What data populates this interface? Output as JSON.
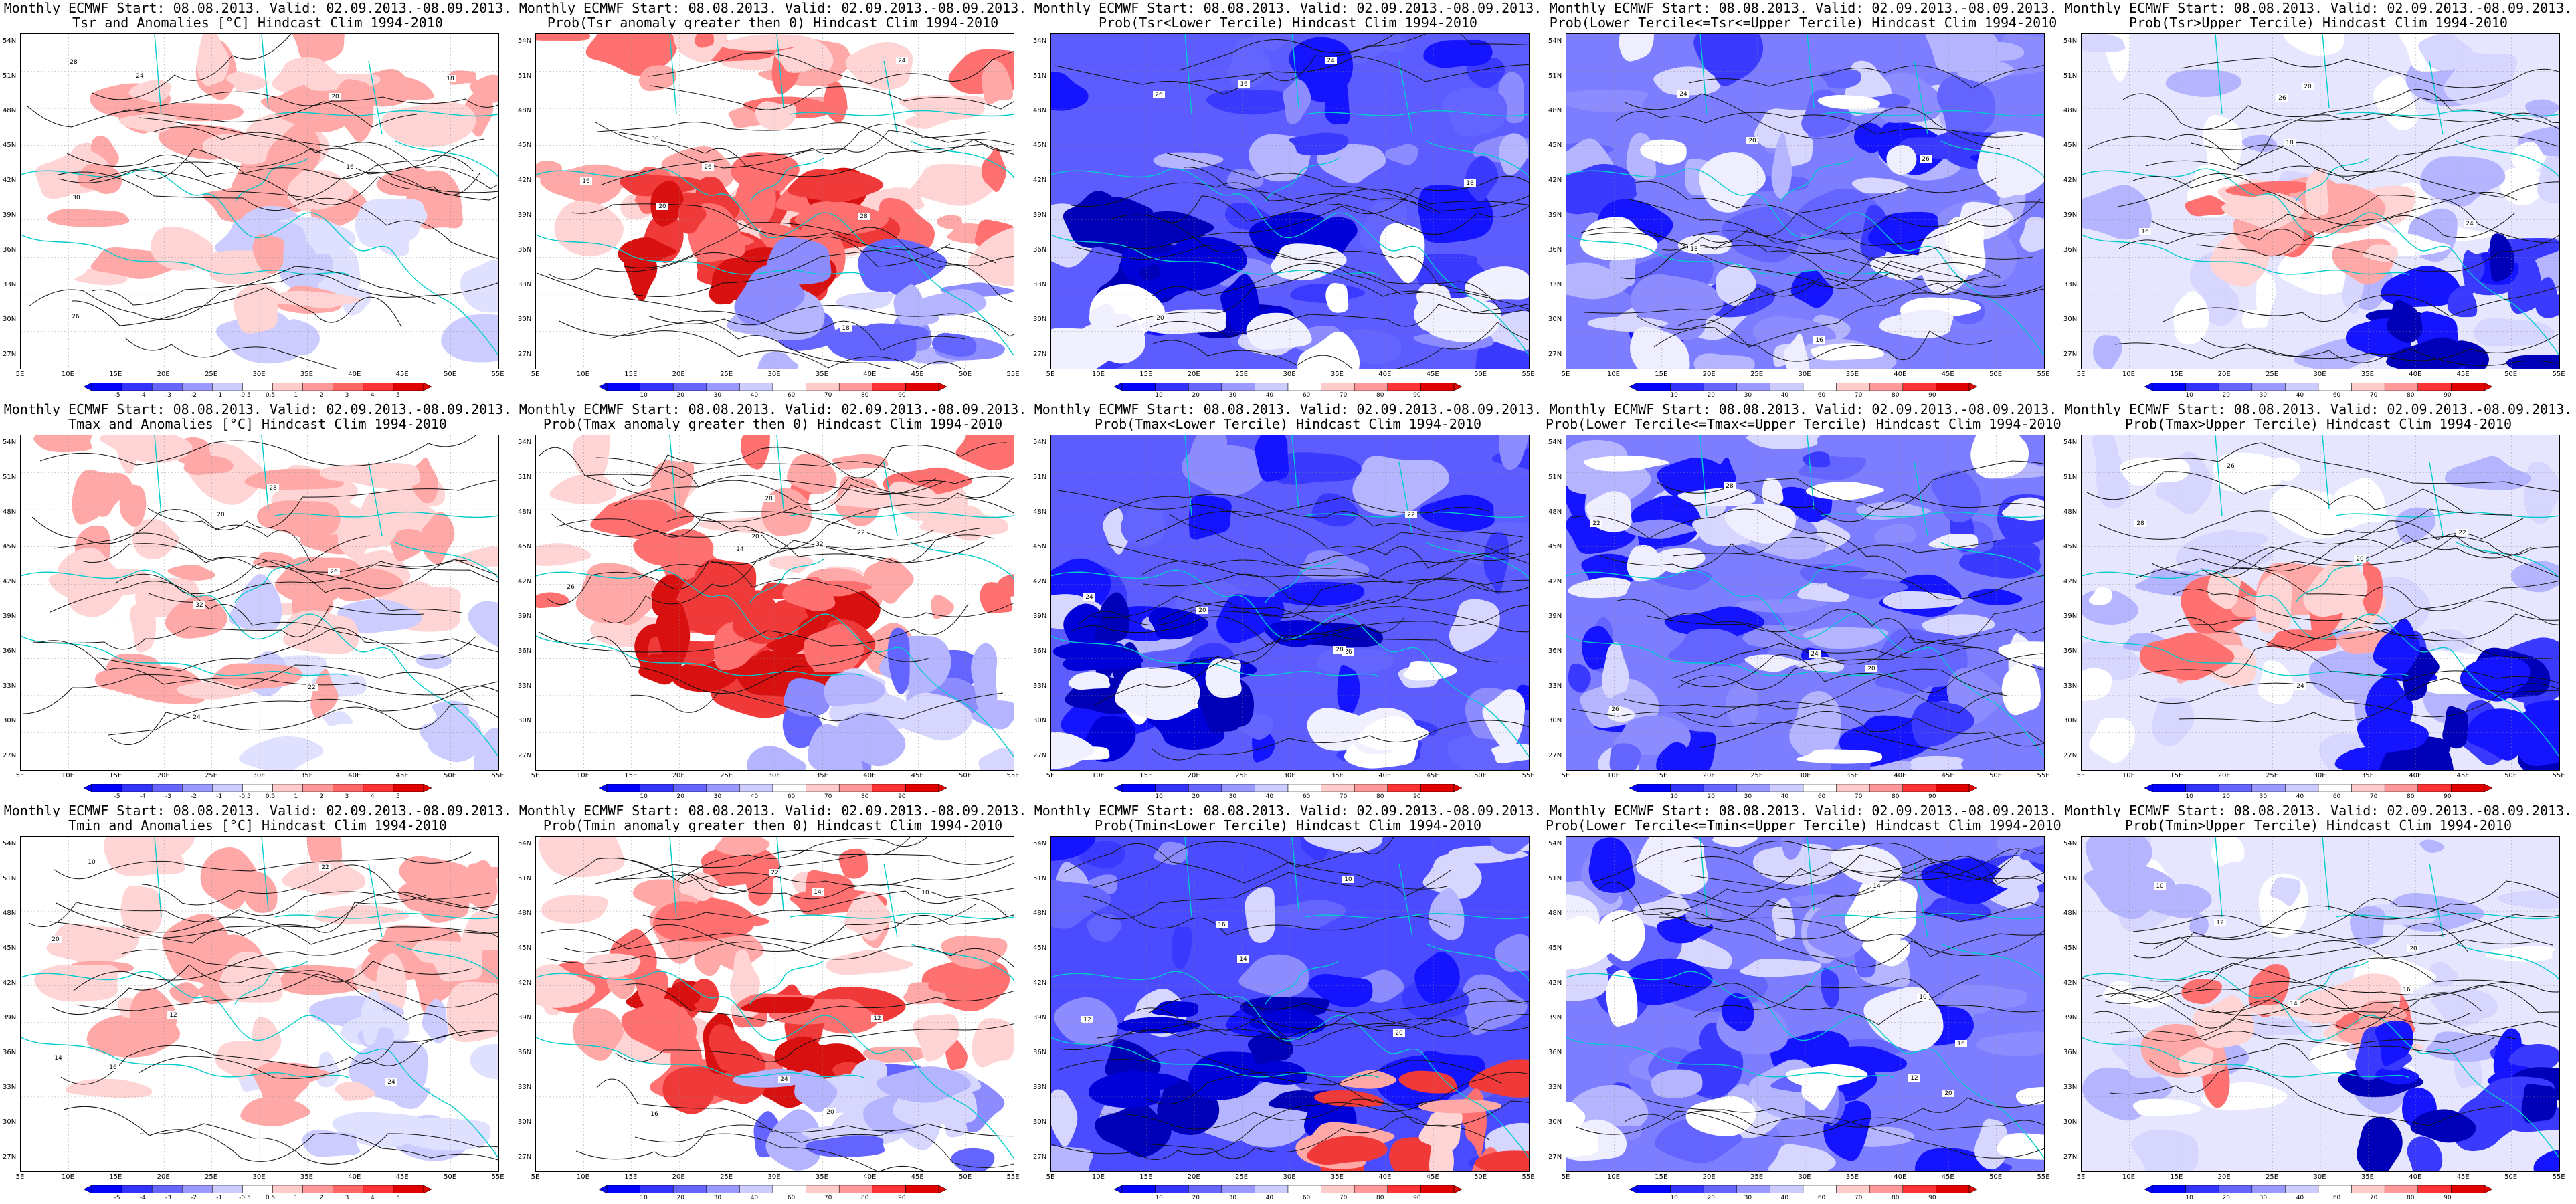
{
  "colors": {
    "blue_dark": "#0000ff",
    "red_dark": "#e00000",
    "coast": "#00cccc",
    "contour": "#000000",
    "anom_palette": [
      "#0000ff",
      "#3333ff",
      "#6666ff",
      "#9999ff",
      "#ccccff",
      "#ffffff",
      "#ffcccc",
      "#ff9999",
      "#ff6666",
      "#ff3333",
      "#e00000"
    ],
    "prob_palette": [
      "#0000ff",
      "#3333ff",
      "#6666ff",
      "#9999ff",
      "#ccccff",
      "#ffffff",
      "#ffcccc",
      "#ff9999",
      "#ff3333",
      "#e00000"
    ]
  },
  "axes": {
    "lat_labels": [
      "54N",
      "51N",
      "48N",
      "45N",
      "42N",
      "39N",
      "36N",
      "33N",
      "30N",
      "27N"
    ],
    "lon_labels": [
      "5E",
      "10E",
      "15E",
      "20E",
      "25E",
      "30E",
      "35E",
      "40E",
      "45E",
      "50E",
      "55E"
    ]
  },
  "colorbars": {
    "anom": [
      "-5",
      "-4",
      "-3",
      "-2",
      "-1",
      "-0.5",
      "0.5",
      "1",
      "2",
      "3",
      "4",
      "5"
    ],
    "prob": [
      "10",
      "20",
      "30",
      "40",
      "60",
      "70",
      "80",
      "90"
    ]
  },
  "rows": [
    {
      "panels": [
        {
          "title1": "Monthly ECMWF Start: 08.08.2013. Valid: 02.09.2013.-08.09.2013.",
          "title2": "Tsr and Anomalies [°C] Hindcast Clim 1994-2010",
          "kind": "anom",
          "icon": "anomaly-map-icon",
          "contours": [
            "16",
            "18",
            "20",
            "24",
            "26",
            "28",
            "30"
          ]
        },
        {
          "title1": "Monthly ECMWF Start: 08.08.2013. Valid: 02.09.2013.-08.09.2013.",
          "title2": "Prob(Tsr anomaly greater then 0) Hindcast Clim 1994-2010",
          "kind": "prob_warm",
          "icon": "probability-map-icon",
          "contours": [
            "16",
            "18",
            "20",
            "24",
            "26",
            "28",
            "30"
          ]
        },
        {
          "title1": "Monthly ECMWF Start: 08.08.2013. Valid: 02.09.2013.-08.09.2013.",
          "title2": "Prob(Tsr<Lower Tercile) Hindcast Clim 1994-2010",
          "kind": "prob_cold",
          "icon": "probability-map-icon",
          "contours": [
            "16",
            "18",
            "20",
            "24",
            "26"
          ]
        },
        {
          "title1": "Monthly ECMWF Start: 08.08.2013. Valid: 02.09.2013.-08.09.2013.",
          "title2": "Prob(Lower Tercile<=Tsr<=Upper Tercile) Hindcast Clim 1994-2010",
          "kind": "prob_mid",
          "icon": "probability-map-icon",
          "contours": [
            "16",
            "18",
            "20",
            "24",
            "26"
          ]
        },
        {
          "title1": "Monthly ECMWF Start: 08.08.2013. Valid: 02.09.2013.-08.09.2013.",
          "title2": "Prob(Tsr>Upper Tercile) Hindcast Clim 1994-2010",
          "kind": "prob_upper",
          "icon": "probability-map-icon",
          "contours": [
            "16",
            "18",
            "20",
            "24",
            "26"
          ]
        }
      ]
    },
    {
      "panels": [
        {
          "title1": "Monthly ECMWF Start: 08.08.2013. Valid: 02.09.2013.-08.09.2013.",
          "title2": "Tmax and Anomalies [°C] Hindcast Clim 1994-2010",
          "kind": "anom",
          "icon": "anomaly-map-icon",
          "contours": [
            "20",
            "22",
            "24",
            "26",
            "28",
            "32"
          ]
        },
        {
          "title1": "Monthly ECMWF Start: 08.08.2013. Valid: 02.09.2013.-08.09.2013.",
          "title2": "Prob(Tmax anomaly greater then 0) Hindcast Clim 1994-2010",
          "kind": "prob_warm",
          "icon": "probability-map-icon",
          "contours": [
            "20",
            "22",
            "24",
            "26",
            "28",
            "32"
          ]
        },
        {
          "title1": "Monthly ECMWF Start: 08.08.2013. Valid: 02.09.2013.-08.09.2013.",
          "title2": "Prob(Tmax<Lower Tercile) Hindcast Clim 1994-2010",
          "kind": "prob_cold",
          "icon": "probability-map-icon",
          "contours": [
            "20",
            "22",
            "24",
            "26",
            "28"
          ]
        },
        {
          "title1": "Monthly ECMWF Start: 08.08.2013. Valid: 02.09.2013.-08.09.2013.",
          "title2": "Prob(Lower Tercile<=Tmax<=Upper Tercile) Hindcast Clim 1994-2010",
          "kind": "prob_mid",
          "icon": "probability-map-icon",
          "contours": [
            "20",
            "22",
            "24",
            "26",
            "28"
          ]
        },
        {
          "title1": "Monthly ECMWF Start: 08.08.2013. Valid: 02.09.2013.-08.09.2013.",
          "title2": "Prob(Tmax>Upper Tercile) Hindcast Clim 1994-2010",
          "kind": "prob_upper",
          "icon": "probability-map-icon",
          "contours": [
            "20",
            "22",
            "24",
            "26",
            "28"
          ]
        }
      ]
    },
    {
      "panels": [
        {
          "title1": "Monthly ECMWF Start: 08.08.2013. Valid: 02.09.2013.-08.09.2013.",
          "title2": "Tmin and Anomalies [°C] Hindcast Clim 1994-2010",
          "kind": "anom",
          "icon": "anomaly-map-icon",
          "contours": [
            "10",
            "12",
            "14",
            "16",
            "20",
            "22",
            "24"
          ]
        },
        {
          "title1": "Monthly ECMWF Start: 08.08.2013. Valid: 02.09.2013.-08.09.2013.",
          "title2": "Prob(Tmin anomaly greater then 0) Hindcast Clim 1994-2010",
          "kind": "prob_warm",
          "icon": "probability-map-icon",
          "contours": [
            "10",
            "12",
            "14",
            "16",
            "20",
            "22",
            "24"
          ]
        },
        {
          "title1": "Monthly ECMWF Start: 08.08.2013. Valid: 02.09.2013.-08.09.2013.",
          "title2": "Prob(Tmin<Lower Tercile) Hindcast Clim 1994-2010",
          "kind": "prob_cold_mixed",
          "icon": "probability-map-icon",
          "contours": [
            "10",
            "12",
            "14",
            "16",
            "20"
          ]
        },
        {
          "title1": "Monthly ECMWF Start: 08.08.2013. Valid: 02.09.2013.-08.09.2013.",
          "title2": "Prob(Lower Tercile<=Tmin<=Upper Tercile) Hindcast Clim 1994-2010",
          "kind": "prob_mid",
          "icon": "probability-map-icon",
          "contours": [
            "10",
            "12",
            "14",
            "16",
            "20"
          ]
        },
        {
          "title1": "Monthly ECMWF Start: 08.08.2013. Valid: 02.09.2013.-08.09.2013.",
          "title2": "Prob(Tmin>Upper Tercile) Hindcast Clim 1994-2010",
          "kind": "prob_upper",
          "icon": "probability-map-icon",
          "contours": [
            "10",
            "12",
            "14",
            "16",
            "20"
          ]
        }
      ]
    }
  ]
}
